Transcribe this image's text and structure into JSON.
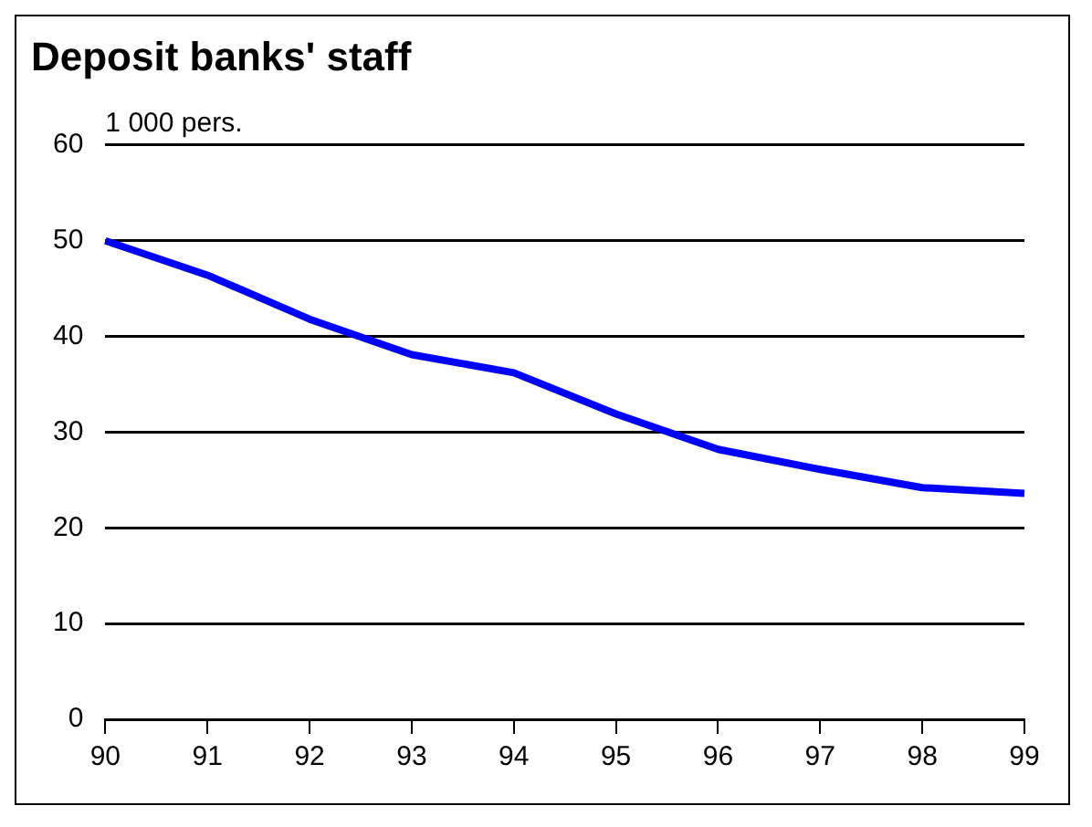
{
  "chart_data": {
    "type": "line",
    "title": "Deposit banks' staff",
    "ylabel": "1 000 pers.",
    "categories": [
      "90",
      "91",
      "92",
      "93",
      "94",
      "95",
      "96",
      "97",
      "98",
      "99"
    ],
    "series": [
      {
        "color": "#0000ff",
        "values": [
          50,
          46.4,
          41.8,
          38.1,
          36.2,
          31.9,
          28.2,
          26.1,
          24.2,
          23.6
        ]
      }
    ],
    "ylim": [
      0,
      60
    ],
    "yticks": [
      0,
      10,
      20,
      30,
      40,
      50,
      60
    ],
    "grid": "y",
    "legend": false,
    "marker": "none",
    "line_style": "solid"
  }
}
